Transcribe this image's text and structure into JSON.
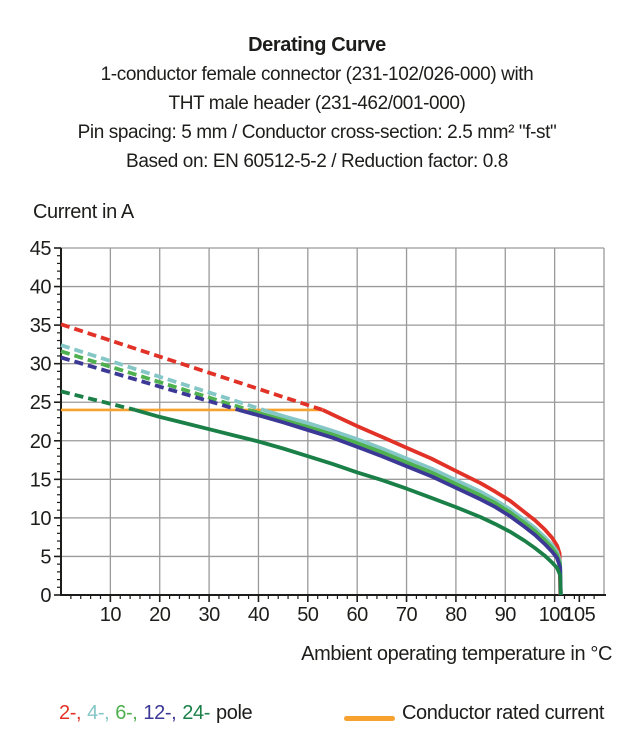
{
  "header": {
    "title": "Derating Curve",
    "subtitle_lines": [
      "1-conductor female connector (231-102/026-000) with",
      "THT male header (231-462/001-000)",
      "Pin spacing: 5 mm / Conductor cross-section: 2.5 mm² \"f-st\"",
      "Based on: EN 60512-5-2 / Reduction factor: 0.8"
    ]
  },
  "chart_data": {
    "type": "line",
    "title": "Derating Curve",
    "xlabel": "Ambient operating temperature in °C",
    "ylabel": "Current in A",
    "xlim": [
      0,
      110
    ],
    "ylim": [
      0,
      45
    ],
    "x_major_ticks": [
      10,
      20,
      30,
      40,
      50,
      60,
      70,
      80,
      90,
      100,
      105
    ],
    "y_major_ticks": [
      0,
      5,
      10,
      15,
      20,
      25,
      30,
      35,
      40,
      45
    ],
    "x_gridline_step": 10,
    "y_gridline_step": 5,
    "x_minor_tick_step": 2,
    "y_minor_tick_step": 1,
    "grid_on": true,
    "grid_color": "#9a9a9a",
    "axis_color": "#1d1d1b",
    "rated_current": {
      "label": "Conductor rated current",
      "color": "#f7a12f",
      "value": 24,
      "x_range": [
        0,
        53
      ]
    },
    "series": [
      {
        "name": "2-pole",
        "color": "#e23227",
        "style_note": "dashed above rated current, solid below",
        "dashed_points": [
          [
            0,
            35.1
          ],
          [
            53,
            24
          ]
        ],
        "solid_points": [
          [
            53,
            24
          ],
          [
            56,
            23.1
          ],
          [
            60,
            21.9
          ],
          [
            65,
            20.5
          ],
          [
            70,
            19.1
          ],
          [
            75,
            17.7
          ],
          [
            80,
            16.1
          ],
          [
            85,
            14.5
          ],
          [
            88,
            13.4
          ],
          [
            91,
            12.2
          ],
          [
            94,
            10.7
          ],
          [
            96,
            9.7
          ],
          [
            98,
            8.5
          ],
          [
            99.5,
            7.4
          ],
          [
            100.5,
            6.4
          ],
          [
            101,
            5.4
          ],
          [
            101.15,
            0
          ]
        ]
      },
      {
        "name": "4-pole",
        "color": "#84c7c6",
        "style_note": "dashed above rated current, solid below",
        "dashed_points": [
          [
            0,
            32.4
          ],
          [
            41,
            24
          ]
        ],
        "solid_points": [
          [
            41,
            24
          ],
          [
            45,
            23.2
          ],
          [
            50,
            22.3
          ],
          [
            55,
            21.3
          ],
          [
            60,
            20.2
          ],
          [
            65,
            19.0
          ],
          [
            70,
            17.7
          ],
          [
            75,
            16.4
          ],
          [
            80,
            14.9
          ],
          [
            85,
            13.4
          ],
          [
            88,
            12.3
          ],
          [
            91,
            11.1
          ],
          [
            94,
            9.7
          ],
          [
            96,
            8.7
          ],
          [
            98,
            7.5
          ],
          [
            99.5,
            6.5
          ],
          [
            100.5,
            5.6
          ],
          [
            101.1,
            4.3
          ],
          [
            101.25,
            0
          ]
        ]
      },
      {
        "name": "6-pole",
        "color": "#4fb04f",
        "style_note": "dashed above rated current, solid below",
        "dashed_points": [
          [
            0,
            31.6
          ],
          [
            38,
            24
          ]
        ],
        "solid_points": [
          [
            38,
            24
          ],
          [
            45,
            22.7
          ],
          [
            50,
            21.8
          ],
          [
            55,
            20.8
          ],
          [
            60,
            19.7
          ],
          [
            65,
            18.5
          ],
          [
            70,
            17.2
          ],
          [
            75,
            15.9
          ],
          [
            80,
            14.4
          ],
          [
            85,
            12.9
          ],
          [
            88,
            11.9
          ],
          [
            91,
            10.7
          ],
          [
            94,
            9.3
          ],
          [
            96,
            8.3
          ],
          [
            98,
            7.1
          ],
          [
            99.5,
            6.1
          ],
          [
            100.5,
            5.2
          ],
          [
            101.1,
            4.0
          ],
          [
            101.25,
            0
          ]
        ]
      },
      {
        "name": "12-pole",
        "color": "#3b3896",
        "style_note": "dashed above rated current, solid below",
        "dashed_points": [
          [
            0,
            30.8
          ],
          [
            36,
            24
          ]
        ],
        "solid_points": [
          [
            36,
            24
          ],
          [
            40,
            23.3
          ],
          [
            45,
            22.4
          ],
          [
            50,
            21.4
          ],
          [
            55,
            20.4
          ],
          [
            60,
            19.2
          ],
          [
            65,
            18.0
          ],
          [
            70,
            16.7
          ],
          [
            75,
            15.4
          ],
          [
            80,
            13.9
          ],
          [
            85,
            12.4
          ],
          [
            88,
            11.4
          ],
          [
            91,
            10.2
          ],
          [
            94,
            8.8
          ],
          [
            96,
            7.8
          ],
          [
            98,
            6.6
          ],
          [
            99.5,
            5.6
          ],
          [
            100.5,
            4.8
          ],
          [
            101.1,
            3.6
          ],
          [
            101.25,
            0
          ]
        ]
      },
      {
        "name": "24-pole",
        "color": "#1a8048",
        "style_note": "dashed above rated current, solid below",
        "dashed_points": [
          [
            0,
            26.4
          ],
          [
            15,
            24
          ]
        ],
        "solid_points": [
          [
            15,
            24
          ],
          [
            20,
            23.1
          ],
          [
            25,
            22.3
          ],
          [
            30,
            21.5
          ],
          [
            35,
            20.7
          ],
          [
            40,
            19.9
          ],
          [
            45,
            19.0
          ],
          [
            50,
            18.0
          ],
          [
            55,
            17.0
          ],
          [
            60,
            15.9
          ],
          [
            65,
            14.9
          ],
          [
            70,
            13.8
          ],
          [
            75,
            12.6
          ],
          [
            80,
            11.4
          ],
          [
            85,
            10.1
          ],
          [
            88,
            9.2
          ],
          [
            91,
            8.2
          ],
          [
            94,
            7.0
          ],
          [
            96,
            6.1
          ],
          [
            98,
            5.1
          ],
          [
            99.5,
            4.2
          ],
          [
            100.5,
            3.5
          ],
          [
            101.1,
            2.6
          ],
          [
            101.25,
            0
          ]
        ]
      }
    ],
    "legend_position": "bottom"
  },
  "legend": {
    "pole_items": [
      {
        "label": "2-,",
        "color": "#e23227"
      },
      {
        "label": "4-,",
        "color": "#84c7c6"
      },
      {
        "label": "6-,",
        "color": "#4fb04f"
      },
      {
        "label": "12-,",
        "color": "#3b3896"
      },
      {
        "label": "24-",
        "color": "#1a8048"
      }
    ],
    "pole_suffix": "pole",
    "rated_current_label": "Conductor rated current"
  }
}
